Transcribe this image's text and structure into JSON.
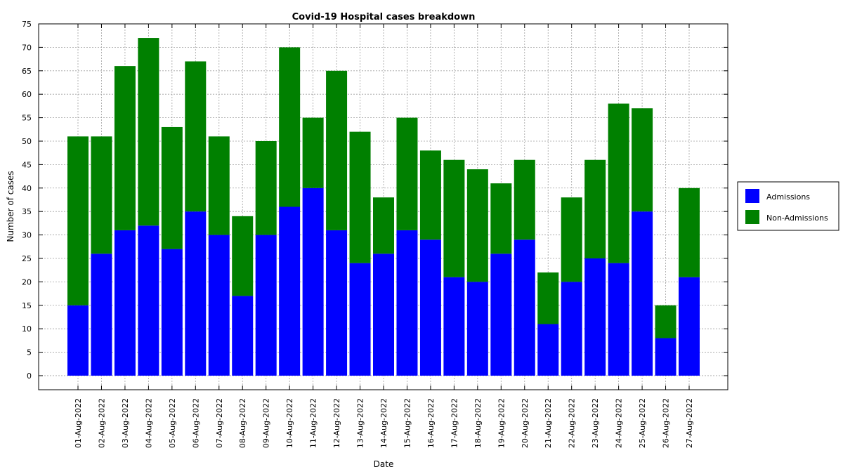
{
  "chart_data": {
    "type": "bar",
    "stacked": true,
    "title": "Covid-19 Hospital cases breakdown",
    "xlabel": "Date",
    "ylabel": "Number of cases",
    "ylim": [
      -3,
      75
    ],
    "yticks": [
      0,
      5,
      10,
      15,
      20,
      25,
      30,
      35,
      40,
      45,
      50,
      55,
      60,
      65,
      70,
      75
    ],
    "grid": true,
    "legend_position": "right",
    "categories": [
      "01-Aug-2022",
      "02-Aug-2022",
      "03-Aug-2022",
      "04-Aug-2022",
      "05-Aug-2022",
      "06-Aug-2022",
      "07-Aug-2022",
      "08-Aug-2022",
      "09-Aug-2022",
      "10-Aug-2022",
      "11-Aug-2022",
      "12-Aug-2022",
      "13-Aug-2022",
      "14-Aug-2022",
      "15-Aug-2022",
      "16-Aug-2022",
      "17-Aug-2022",
      "18-Aug-2022",
      "19-Aug-2022",
      "20-Aug-2022",
      "21-Aug-2022",
      "22-Aug-2022",
      "23-Aug-2022",
      "24-Aug-2022",
      "25-Aug-2022",
      "26-Aug-2022",
      "27-Aug-2022"
    ],
    "series": [
      {
        "name": "Admissions",
        "color": "#0000ff",
        "values": [
          15,
          26,
          31,
          32,
          27,
          35,
          30,
          17,
          30,
          36,
          40,
          31,
          24,
          26,
          31,
          29,
          21,
          20,
          26,
          29,
          11,
          20,
          25,
          24,
          35,
          8,
          21
        ]
      },
      {
        "name": "Non-Admissions",
        "color": "#008000",
        "values": [
          36,
          25,
          35,
          40,
          26,
          32,
          21,
          17,
          20,
          34,
          15,
          34,
          28,
          12,
          24,
          19,
          25,
          24,
          15,
          17,
          11,
          18,
          21,
          34,
          22,
          7,
          19
        ]
      }
    ]
  }
}
